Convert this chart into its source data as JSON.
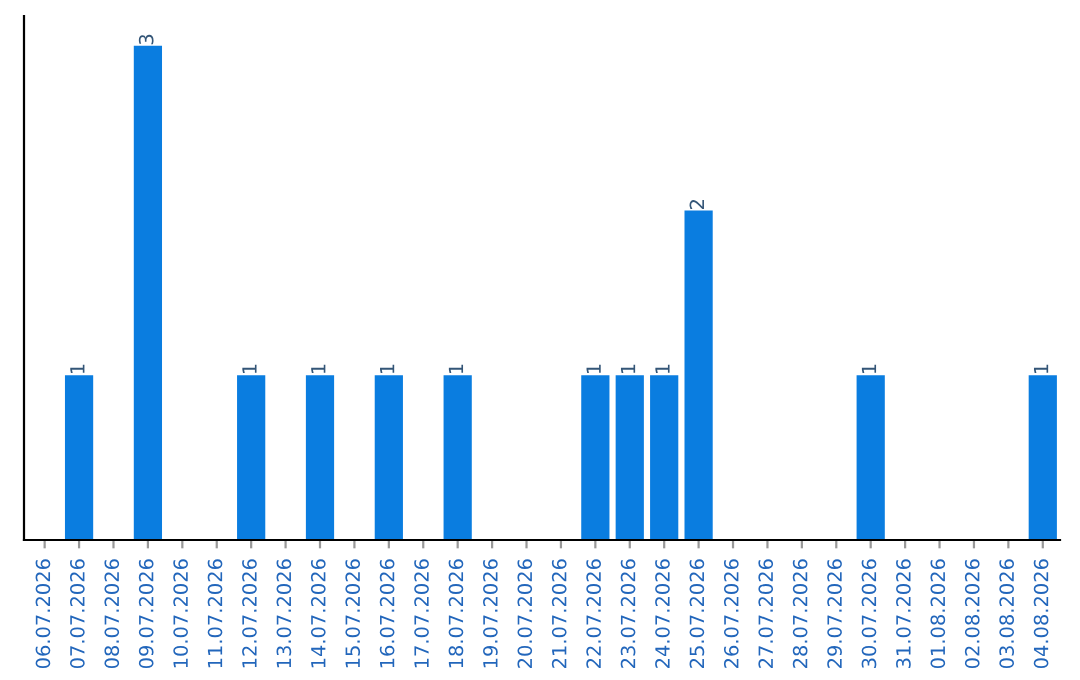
{
  "chart_data": {
    "type": "bar",
    "categories": [
      "06.07.2026",
      "07.07.2026",
      "08.07.2026",
      "09.07.2026",
      "10.07.2026",
      "11.07.2026",
      "12.07.2026",
      "13.07.2026",
      "14.07.2026",
      "15.07.2026",
      "16.07.2026",
      "17.07.2026",
      "18.07.2026",
      "19.07.2026",
      "20.07.2026",
      "21.07.2026",
      "22.07.2026",
      "23.07.2026",
      "24.07.2026",
      "25.07.2026",
      "26.07.2026",
      "27.07.2026",
      "28.07.2026",
      "29.07.2026",
      "30.07.2026",
      "31.07.2026",
      "01.08.2026",
      "02.08.2026",
      "03.08.2026",
      "04.08.2026"
    ],
    "values": [
      0,
      1,
      0,
      3,
      0,
      0,
      1,
      0,
      1,
      0,
      1,
      0,
      1,
      0,
      0,
      0,
      1,
      1,
      1,
      2,
      0,
      0,
      0,
      0,
      1,
      0,
      0,
      0,
      0,
      1
    ],
    "value_labels": [
      null,
      "1",
      null,
      "3",
      null,
      null,
      "1",
      null,
      "1",
      null,
      "1",
      null,
      "1",
      null,
      null,
      null,
      "1",
      "1",
      "1",
      "2",
      null,
      null,
      null,
      null,
      "1",
      null,
      null,
      null,
      null,
      "1"
    ],
    "color": "#0a7de0",
    "grid": false,
    "legend": false
  }
}
